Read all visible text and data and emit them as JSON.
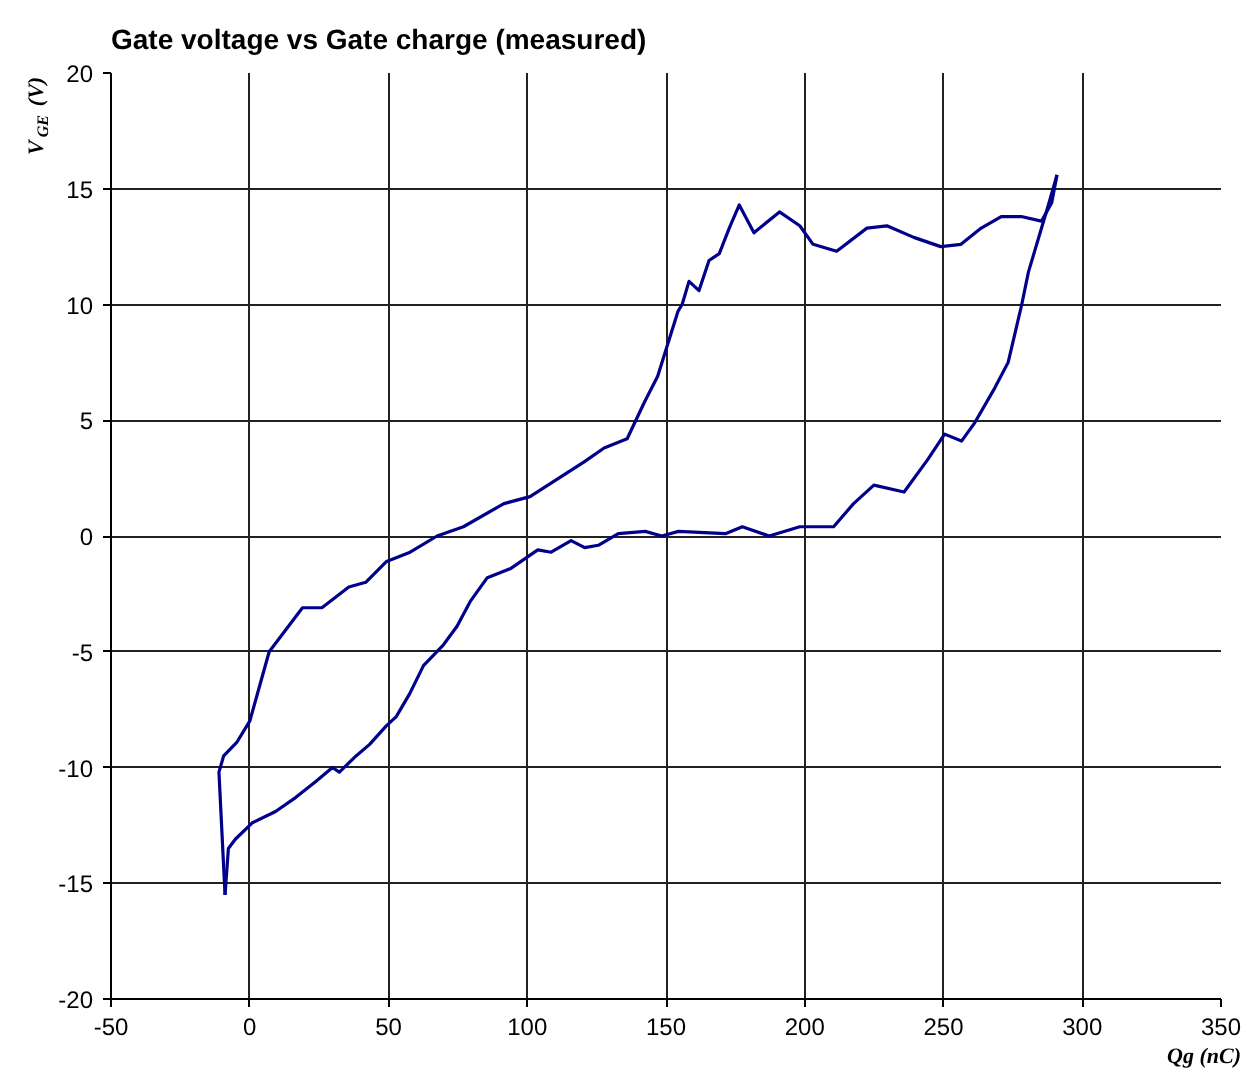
{
  "chart_data": {
    "type": "line",
    "title": "Gate voltage vs Gate charge (measured)",
    "xlabel": "Qg (nC)",
    "ylabel": "V$_{GE}$ (V)",
    "series": [
      {
        "color": "#00008b",
        "x": [
          -8.9,
          -11.1,
          -9.4,
          -4.6,
          0,
          7,
          19,
          26,
          35.7,
          41.8,
          49.3,
          57.8,
          67.5,
          77,
          91.6,
          101,
          120.5,
          127.7,
          136,
          142.3,
          147,
          154.3,
          155.8,
          158.3,
          161.9,
          165.5,
          169.2,
          172.8,
          176.4,
          181.7,
          190.9,
          198.2,
          203,
          211.5,
          222.4,
          229.6,
          239.3,
          249,
          256.3,
          263.6,
          270.8,
          278,
          285.3,
          289,
          290.9
        ],
        "values": [
          -15.5,
          -10.2,
          -9.5,
          -8.9,
          -8.0,
          -5.0,
          -3.1,
          -3.1,
          -2.2,
          -2.0,
          -1.1,
          -0.7,
          0,
          0.4,
          1.4,
          1.7,
          3.2,
          3.8,
          4.2,
          5.8,
          6.9,
          9.7,
          10.0,
          11.0,
          10.6,
          11.9,
          12.2,
          13.3,
          14.3,
          13.1,
          14.0,
          13.4,
          12.6,
          12.3,
          13.3,
          13.4,
          12.9,
          12.5,
          12.6,
          13.3,
          13.8,
          13.8,
          13.6,
          14.4,
          15.6
        ]
      },
      {
        "color": "#00008b",
        "x": [
          -8.9,
          -7.7,
          -5.2,
          0.8,
          9.3,
          16.5,
          23.8,
          29.8,
          32.3,
          38.3,
          43.2,
          49.2,
          52.8,
          57.7,
          62.6,
          69.8,
          74.7,
          79.6,
          85.6,
          94.1,
          103.8,
          108.6,
          115.8,
          120.7,
          125.6,
          132.8,
          142.5,
          148.5,
          154.5,
          171.4,
          177.5,
          187.2,
          198.2,
          210.4,
          217.6,
          224.9,
          235.8,
          244.3,
          250.4,
          256.5,
          261.3,
          268.5,
          273.3,
          278.2,
          280.6,
          287.8,
          290.9
        ],
        "values": [
          -15.5,
          -13.5,
          -13.1,
          -12.4,
          -11.9,
          -11.3,
          -10.6,
          -10.0,
          -10.2,
          -9.5,
          -9.0,
          -8.2,
          -7.8,
          -6.8,
          -5.6,
          -4.7,
          -3.9,
          -2.8,
          -1.8,
          -1.4,
          -0.6,
          -0.7,
          -0.2,
          -0.5,
          -0.4,
          0.1,
          0.2,
          0,
          0.2,
          0.1,
          0.4,
          0,
          0.4,
          0.4,
          1.4,
          2.2,
          1.9,
          3.3,
          4.4,
          4.1,
          4.9,
          6.4,
          7.5,
          10.0,
          11.4,
          14.3,
          15.6
        ]
      }
    ],
    "xlim": [
      -50,
      350
    ],
    "xticks": [
      -50,
      0,
      50,
      100,
      150,
      200,
      250,
      300,
      350
    ],
    "ylim": [
      -20,
      20
    ],
    "yticks": [
      -20,
      -15,
      -10,
      -5,
      0,
      5,
      10,
      15,
      20
    ],
    "grid": true
  }
}
